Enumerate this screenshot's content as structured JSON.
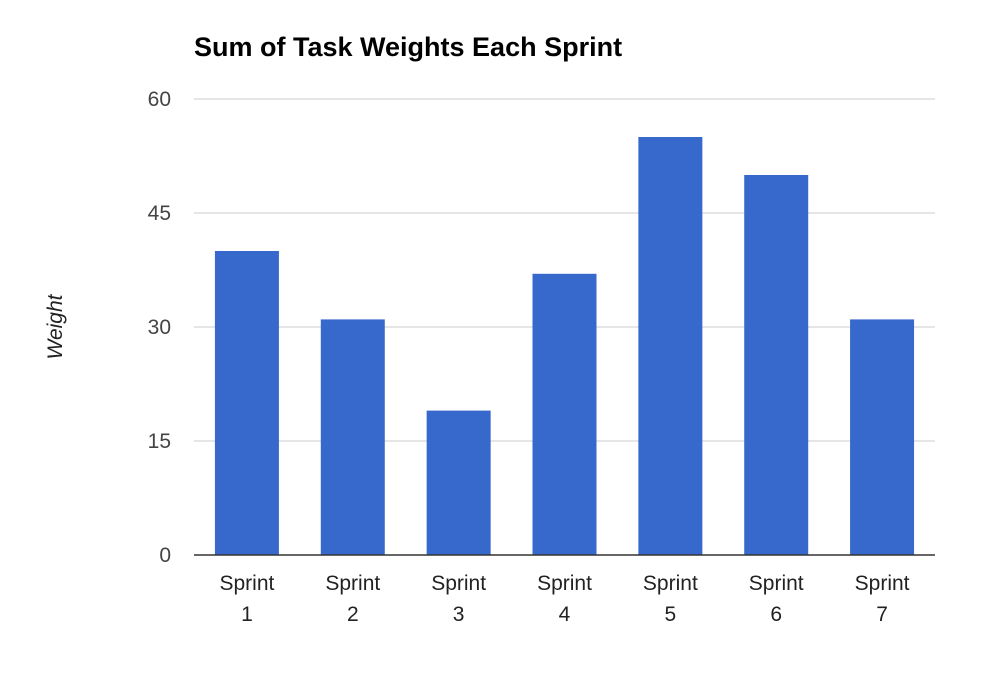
{
  "chart_data": {
    "type": "bar",
    "title": "Sum of Task Weights Each Sprint",
    "xlabel": "",
    "ylabel": "Weight",
    "categories": [
      [
        "Sprint",
        "1"
      ],
      [
        "Sprint",
        "2"
      ],
      [
        "Sprint",
        "3"
      ],
      [
        "Sprint",
        "4"
      ],
      [
        "Sprint",
        "5"
      ],
      [
        "Sprint",
        "6"
      ],
      [
        "Sprint",
        "7"
      ]
    ],
    "values": [
      40,
      31,
      19,
      37,
      55,
      50,
      31
    ],
    "ylim": [
      0,
      60
    ],
    "yticks": [
      "0",
      "15",
      "30",
      "45",
      "60"
    ],
    "grid": true,
    "legend": "none",
    "colors": {
      "bar": "#3769cc",
      "grid": "#cccccc",
      "baseline": "#333333",
      "title": "#000000",
      "tick_text": "#444444",
      "axis_label": "#222222"
    }
  }
}
